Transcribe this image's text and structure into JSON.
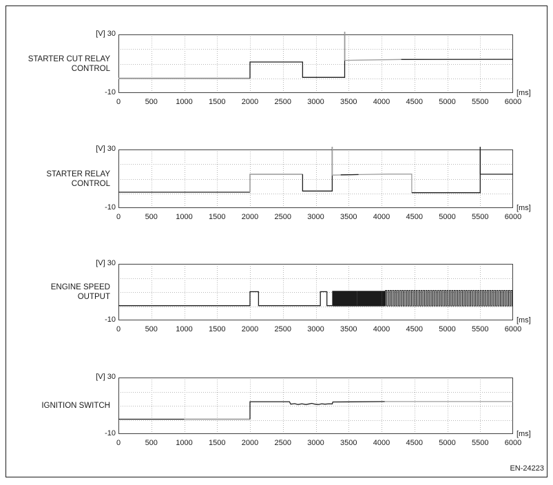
{
  "figure": {
    "code_label": "EN-24223"
  },
  "axis": {
    "y_top_label": "[V] 30",
    "y_bottom_label": "-10",
    "x_unit_label": "[ms]",
    "x_ticks": [
      0,
      500,
      1000,
      1500,
      2000,
      2500,
      3000,
      3500,
      4000,
      4500,
      5000,
      5500,
      6000
    ],
    "x_min": 0,
    "x_max": 6000,
    "y_min": -10,
    "y_max": 30,
    "h_gridlines_at_volts": [
      0,
      10,
      20
    ],
    "v_grid_step_ms": 500,
    "grid_style": "dotted"
  },
  "colors": {
    "trace_black": "#1c1c1c",
    "trace_gray": "#9e9e9e",
    "grid": "#b5b5b5",
    "frame": "#3f3f3f",
    "text": "#1a1a1a",
    "background": "#ffffff"
  },
  "chart_data": [
    {
      "id": "starter-cut-relay-control",
      "type": "line",
      "title_lines": [
        "STARTER CUT RELAY",
        "CONTROL"
      ],
      "x_unit": "ms",
      "y_unit": "V",
      "xlim": [
        0,
        6000
      ],
      "ylim": [
        -10,
        30
      ],
      "segments": [
        {
          "color": "gray",
          "w": 2.2,
          "points": [
            [
              0,
              0
            ],
            [
              2000,
              0
            ]
          ]
        },
        {
          "color": "black",
          "points": [
            [
              2000,
              0
            ],
            [
              2000,
              11.2
            ],
            [
              2800,
              11.2
            ],
            [
              2800,
              0.7
            ],
            [
              3440,
              0.7
            ],
            [
              3440,
              31.8
            ]
          ]
        },
        {
          "color": "gray",
          "points": [
            [
              3442,
              31.8
            ],
            [
              3442,
              12.3
            ],
            [
              3700,
              12.5
            ],
            [
              4300,
              12.9
            ]
          ]
        },
        {
          "color": "black",
          "points": [
            [
              4300,
              12.9
            ],
            [
              6000,
              13
            ]
          ]
        }
      ],
      "pulse_trains": []
    },
    {
      "id": "starter-relay-control",
      "type": "line",
      "title_lines": [
        "STARTER RELAY",
        "CONTROL"
      ],
      "x_unit": "ms",
      "y_unit": "V",
      "xlim": [
        0,
        6000
      ],
      "ylim": [
        -10,
        30
      ],
      "segments": [
        {
          "color": "black",
          "points": [
            [
              0,
              0.8
            ],
            [
              2000,
              0.8
            ]
          ]
        },
        {
          "color": "gray",
          "w": 1.6,
          "points": [
            [
              2000,
              0.8
            ],
            [
              2000,
              13.1
            ],
            [
              2800,
              13.1
            ]
          ]
        },
        {
          "color": "black",
          "points": [
            [
              2800,
              13.1
            ],
            [
              2800,
              1.6
            ],
            [
              3250,
              1.6
            ],
            [
              3250,
              31.8
            ]
          ]
        },
        {
          "color": "gray",
          "points": [
            [
              3252,
              31.8
            ],
            [
              3252,
              12.5
            ],
            [
              3600,
              12.8
            ],
            [
              4100,
              13.2
            ],
            [
              4460,
              13.2
            ],
            [
              4460,
              0.5
            ]
          ]
        },
        {
          "color": "black",
          "points": [
            [
              3380,
              12.7
            ],
            [
              3650,
              12.85
            ]
          ]
        },
        {
          "color": "black",
          "points": [
            [
              4460,
              0.5
            ],
            [
              5500,
              0.5
            ],
            [
              5500,
              31.8
            ]
          ]
        },
        {
          "color": "black",
          "points": [
            [
              5502,
              31.8
            ],
            [
              5502,
              13.1
            ],
            [
              6000,
              13.1
            ]
          ]
        }
      ],
      "pulse_trains": []
    },
    {
      "id": "engine-speed-output",
      "type": "line",
      "title_lines": [
        "ENGINE SPEED",
        "OUTPUT"
      ],
      "x_unit": "ms",
      "y_unit": "V",
      "xlim": [
        0,
        6000
      ],
      "ylim": [
        -10,
        30
      ],
      "segments": [
        {
          "color": "black",
          "points": [
            [
              0,
              0.4
            ],
            [
              2000,
              0.4
            ],
            [
              2000,
              10.3
            ],
            [
              2130,
              10.3
            ],
            [
              2130,
              0.4
            ],
            [
              3070,
              0.4
            ],
            [
              3070,
              10.3
            ],
            [
              3170,
              10.3
            ],
            [
              3170,
              0.4
            ],
            [
              3255,
              0.4
            ]
          ]
        }
      ],
      "pulse_trains": [
        {
          "color": "black",
          "start": 3255,
          "end": 4060,
          "period": 21,
          "duty": 0.5,
          "low": 0.2,
          "high": 10.6
        },
        {
          "color": "black",
          "start": 4060,
          "end": 6000,
          "period": 36,
          "duty": 0.5,
          "low": 0.2,
          "high": 11.2
        }
      ]
    },
    {
      "id": "ignition-switch",
      "type": "line",
      "title_lines": [
        "IGNITION SWITCH"
      ],
      "x_unit": "ms",
      "y_unit": "V",
      "xlim": [
        0,
        6000
      ],
      "ylim": [
        -10,
        30
      ],
      "segments": [
        {
          "color": "black",
          "points": [
            [
              0,
              0.5
            ],
            [
              1000,
              0.5
            ]
          ]
        },
        {
          "color": "gray",
          "w": 1.8,
          "points": [
            [
              1000,
              0.5
            ],
            [
              2000,
              0.5
            ]
          ]
        },
        {
          "color": "black",
          "points": [
            [
              2000,
              0.5
            ],
            [
              2000,
              12.9
            ],
            [
              2600,
              12.9
            ],
            [
              2620,
              11.1
            ],
            [
              2680,
              11.5
            ],
            [
              2730,
              10.9
            ],
            [
              2790,
              11.4
            ],
            [
              2850,
              10.9
            ],
            [
              2900,
              11.3
            ],
            [
              2940,
              11.7
            ],
            [
              2990,
              11.1
            ],
            [
              3040,
              10.9
            ],
            [
              3090,
              11.4
            ],
            [
              3140,
              11.1
            ],
            [
              3200,
              11.4
            ],
            [
              3250,
              11.3
            ],
            [
              3260,
              12.7
            ],
            [
              4050,
              13
            ]
          ]
        },
        {
          "color": "gray",
          "points": [
            [
              4050,
              13
            ],
            [
              6000,
              13
            ]
          ]
        }
      ],
      "pulse_trains": []
    }
  ]
}
